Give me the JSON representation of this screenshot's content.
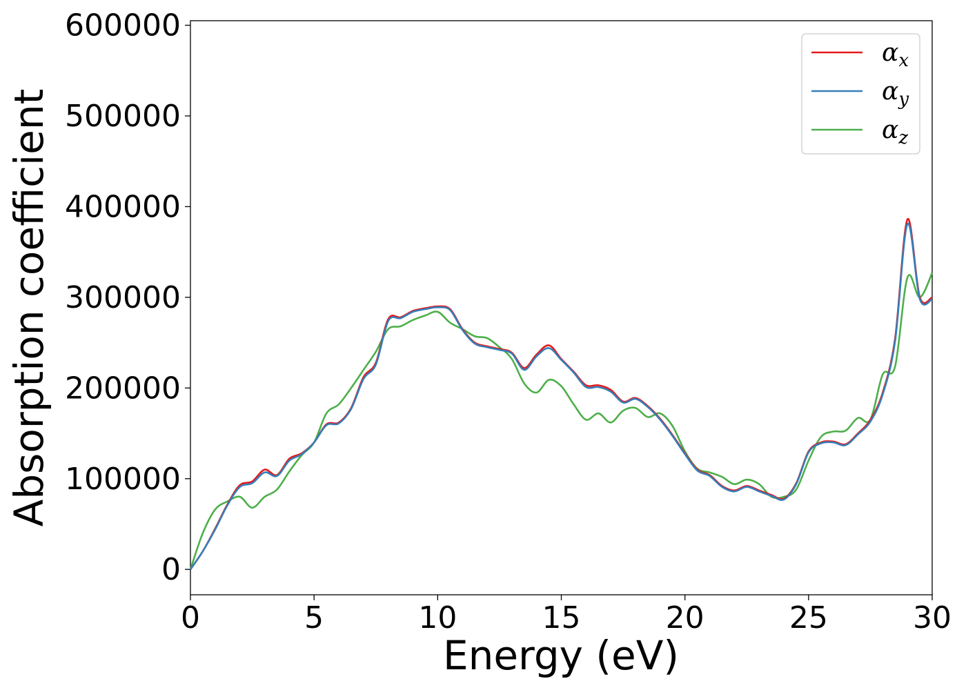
{
  "chart_data": {
    "type": "line",
    "xlabel": "Energy (eV)",
    "ylabel": "Absorption coefficient",
    "xlim": [
      0,
      30
    ],
    "ylim": [
      -28000,
      605000
    ],
    "x_ticks": [
      "0",
      "5",
      "10",
      "15",
      "20",
      "25",
      "30"
    ],
    "y_ticks": [
      "0",
      "100000",
      "200000",
      "300000",
      "400000",
      "500000",
      "600000"
    ],
    "grid": false,
    "legend_position": "top-right",
    "series": [
      {
        "name": "α_x",
        "label_main": "α",
        "label_sub": "x",
        "color": "#e41a1c",
        "x": [
          0,
          0.5,
          1,
          1.5,
          2,
          2.5,
          3,
          3.5,
          4,
          4.5,
          5,
          5.5,
          6,
          6.5,
          7,
          7.5,
          8,
          8.5,
          9,
          9.5,
          10,
          10.5,
          11,
          11.5,
          12,
          12.5,
          13,
          13.5,
          14,
          14.5,
          15,
          15.5,
          16,
          16.5,
          17,
          17.5,
          18,
          18.5,
          19,
          19.5,
          20,
          20.5,
          21,
          21.5,
          22,
          22.5,
          23,
          23.5,
          24,
          24.5,
          25,
          25.5,
          26,
          26.5,
          27,
          27.5,
          28,
          28.5,
          29,
          29.5,
          30
        ],
        "y": [
          0,
          20000,
          45000,
          72000,
          93000,
          97000,
          110000,
          104000,
          122000,
          128000,
          140000,
          160000,
          162000,
          178000,
          212000,
          228000,
          276000,
          278000,
          285000,
          288000,
          290000,
          287000,
          265000,
          250000,
          246000,
          243000,
          239000,
          222000,
          237000,
          247000,
          232000,
          218000,
          203000,
          203000,
          198000,
          185000,
          189000,
          180000,
          166000,
          148000,
          128000,
          110000,
          104000,
          92000,
          87000,
          92000,
          87000,
          82000,
          78000,
          95000,
          130000,
          140000,
          141000,
          138000,
          150000,
          165000,
          195000,
          255000,
          386000,
          300000,
          300000
        ]
      },
      {
        "name": "α_y",
        "label_main": "α",
        "label_sub": "y",
        "color": "#377eb8",
        "x": [
          0,
          0.5,
          1,
          1.5,
          2,
          2.5,
          3,
          3.5,
          4,
          4.5,
          5,
          5.5,
          6,
          6.5,
          7,
          7.5,
          8,
          8.5,
          9,
          9.5,
          10,
          10.5,
          11,
          11.5,
          12,
          12.5,
          13,
          13.5,
          14,
          14.5,
          15,
          15.5,
          16,
          16.5,
          17,
          17.5,
          18,
          18.5,
          19,
          19.5,
          20,
          20.5,
          21,
          21.5,
          22,
          22.5,
          23,
          23.5,
          24,
          24.5,
          25,
          25.5,
          26,
          26.5,
          27,
          27.5,
          28,
          28.5,
          29,
          29.5,
          30
        ],
        "y": [
          0,
          20000,
          44000,
          71000,
          91000,
          95000,
          107000,
          103000,
          120000,
          127000,
          140000,
          159000,
          161000,
          177000,
          210000,
          226000,
          274000,
          277000,
          284000,
          287000,
          289000,
          286000,
          264000,
          249000,
          245000,
          242000,
          238000,
          220000,
          235000,
          244000,
          231000,
          217000,
          201000,
          201000,
          196000,
          184000,
          188000,
          179000,
          165000,
          147000,
          127000,
          109000,
          103000,
          91000,
          86000,
          91000,
          86000,
          81000,
          77000,
          94000,
          129000,
          139000,
          140000,
          137000,
          149000,
          163000,
          193000,
          252000,
          381000,
          298000,
          298000
        ]
      },
      {
        "name": "α_z",
        "label_main": "α",
        "label_sub": "z",
        "color": "#4daf4a",
        "x": [
          0,
          0.5,
          1,
          1.5,
          2,
          2.5,
          3,
          3.5,
          4,
          4.5,
          5,
          5.5,
          6,
          6.5,
          7,
          7.5,
          8,
          8.5,
          9,
          9.5,
          10,
          10.5,
          11,
          11.5,
          12,
          12.5,
          13,
          13.5,
          14,
          14.5,
          15,
          15.5,
          16,
          16.5,
          17,
          17.5,
          18,
          18.5,
          19,
          19.5,
          20,
          20.5,
          21,
          21.5,
          22,
          22.5,
          23,
          23.5,
          24,
          24.5,
          25,
          25.5,
          26,
          26.5,
          27,
          27.5,
          28,
          28.5,
          29,
          29.5,
          30
        ],
        "y": [
          0,
          40000,
          66000,
          75000,
          80000,
          68000,
          80000,
          88000,
          108000,
          126000,
          140000,
          172000,
          182000,
          200000,
          220000,
          240000,
          265000,
          268000,
          275000,
          280000,
          284000,
          272000,
          265000,
          257000,
          255000,
          245000,
          232000,
          205000,
          195000,
          209000,
          202000,
          182000,
          165000,
          172000,
          162000,
          175000,
          178000,
          168000,
          172000,
          158000,
          130000,
          111000,
          107000,
          102000,
          94000,
          99000,
          94000,
          80000,
          80000,
          88000,
          120000,
          146000,
          152000,
          153000,
          167000,
          165000,
          215000,
          224000,
          322000,
          300000,
          327000
        ]
      }
    ]
  }
}
